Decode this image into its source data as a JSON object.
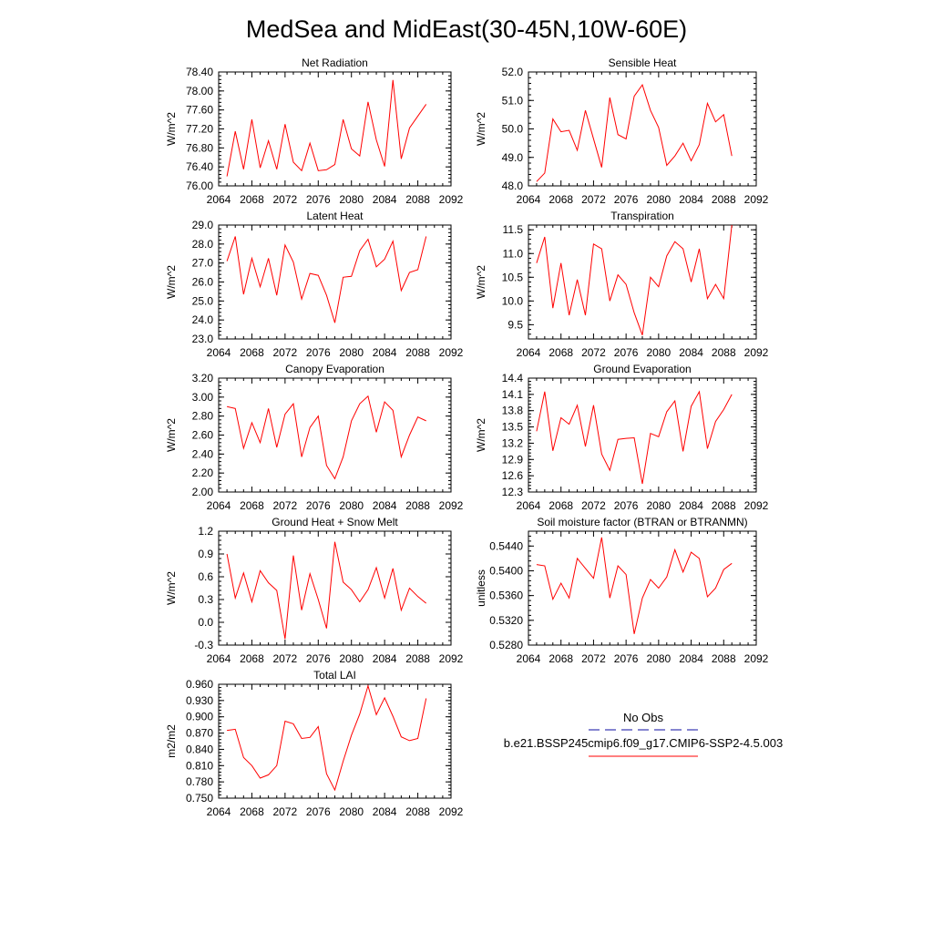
{
  "figure": {
    "title": "MedSea and MidEast(30-45N,10W-60E)"
  },
  "legend": {
    "entries": [
      {
        "label": "No Obs",
        "color": "#3c3cb4",
        "dash": true
      },
      {
        "label": "b.e21.BSSP245cmip6.f09_g17.CMIP6-SSP2-4.5.003",
        "color": "#ff0000",
        "dash": false
      }
    ]
  },
  "chart_data": [
    {
      "type": "line",
      "title": "Net Radiation",
      "ylabel": "W/m^2",
      "xlim": [
        2064,
        2092
      ],
      "ylim": [
        76.0,
        78.4
      ],
      "xticks": [
        "2064",
        "2068",
        "2072",
        "2076",
        "2080",
        "2084",
        "2088",
        "2092"
      ],
      "yticks": [
        "76.00",
        "76.40",
        "76.80",
        "77.20",
        "77.60",
        "78.00",
        "78.40"
      ],
      "series": [
        {
          "color": "#ff0000",
          "x": [
            2065,
            2066,
            2067,
            2068,
            2069,
            2070,
            2071,
            2072,
            2073,
            2074,
            2075,
            2076,
            2077,
            2078,
            2079,
            2080,
            2081,
            2082,
            2083,
            2084,
            2085,
            2086,
            2087,
            2088,
            2089
          ],
          "values": [
            76.2,
            77.15,
            76.35,
            77.4,
            76.38,
            76.95,
            76.35,
            77.3,
            76.5,
            76.32,
            76.9,
            76.32,
            76.34,
            76.45,
            77.4,
            76.78,
            76.63,
            77.77,
            76.97,
            76.41,
            78.23,
            76.57,
            77.22,
            77.47,
            77.72
          ]
        }
      ]
    },
    {
      "type": "line",
      "title": "Sensible Heat",
      "ylabel": "W/m^2",
      "xlim": [
        2064,
        2092
      ],
      "ylim": [
        48.0,
        52.0
      ],
      "xticks": [
        "2064",
        "2068",
        "2072",
        "2076",
        "2080",
        "2084",
        "2088",
        "2092"
      ],
      "yticks": [
        "48.0",
        "49.0",
        "50.0",
        "51.0",
        "52.0"
      ],
      "series": [
        {
          "color": "#ff0000",
          "x": [
            2065,
            2066,
            2067,
            2068,
            2069,
            2070,
            2071,
            2072,
            2073,
            2074,
            2075,
            2076,
            2077,
            2078,
            2079,
            2080,
            2081,
            2082,
            2083,
            2084,
            2085,
            2086,
            2087,
            2088,
            2089
          ],
          "values": [
            48.15,
            48.45,
            50.35,
            49.9,
            49.95,
            49.25,
            50.65,
            49.65,
            48.65,
            51.1,
            49.8,
            49.65,
            51.15,
            51.55,
            50.65,
            50.05,
            48.72,
            49.05,
            49.5,
            48.88,
            49.45,
            50.9,
            50.25,
            50.5,
            49.05
          ]
        }
      ]
    },
    {
      "type": "line",
      "title": "Latent Heat",
      "ylabel": "W/m^2",
      "xlim": [
        2064,
        2092
      ],
      "ylim": [
        23.0,
        29.0
      ],
      "xticks": [
        "2064",
        "2068",
        "2072",
        "2076",
        "2080",
        "2084",
        "2088",
        "2092"
      ],
      "yticks": [
        "23.0",
        "24.0",
        "25.0",
        "26.0",
        "27.0",
        "28.0",
        "29.0"
      ],
      "series": [
        {
          "color": "#ff0000",
          "x": [
            2065,
            2066,
            2067,
            2068,
            2069,
            2070,
            2071,
            2072,
            2073,
            2074,
            2075,
            2076,
            2077,
            2078,
            2079,
            2080,
            2081,
            2082,
            2083,
            2084,
            2085,
            2086,
            2087,
            2088,
            2089
          ],
          "values": [
            27.1,
            28.4,
            25.35,
            27.25,
            25.75,
            27.25,
            25.3,
            27.95,
            27.05,
            25.1,
            26.45,
            26.35,
            25.3,
            23.85,
            26.25,
            26.3,
            27.65,
            28.25,
            26.8,
            27.2,
            28.15,
            25.55,
            26.5,
            26.65,
            28.4
          ]
        }
      ]
    },
    {
      "type": "line",
      "title": "Transpiration",
      "ylabel": "W/m^2",
      "xlim": [
        2064,
        2092
      ],
      "ylim": [
        9.2,
        11.6
      ],
      "xticks": [
        "2064",
        "2068",
        "2072",
        "2076",
        "2080",
        "2084",
        "2088",
        "2092"
      ],
      "yticks": [
        "9.5",
        "10.0",
        "10.5",
        "11.0",
        "11.5"
      ],
      "series": [
        {
          "color": "#ff0000",
          "x": [
            2065,
            2066,
            2067,
            2068,
            2069,
            2070,
            2071,
            2072,
            2073,
            2074,
            2075,
            2076,
            2077,
            2078,
            2079,
            2080,
            2081,
            2082,
            2083,
            2084,
            2085,
            2086,
            2087,
            2088,
            2089
          ],
          "values": [
            10.8,
            11.35,
            9.85,
            10.8,
            9.7,
            10.45,
            9.7,
            11.2,
            11.1,
            10.0,
            10.55,
            10.35,
            9.75,
            9.28,
            10.5,
            10.3,
            10.95,
            11.25,
            11.1,
            10.4,
            11.1,
            10.05,
            10.35,
            10.05,
            11.6
          ]
        }
      ]
    },
    {
      "type": "line",
      "title": "Canopy Evaporation",
      "ylabel": "W/m^2",
      "xlim": [
        2064,
        2092
      ],
      "ylim": [
        2.0,
        3.2
      ],
      "xticks": [
        "2064",
        "2068",
        "2072",
        "2076",
        "2080",
        "2084",
        "2088",
        "2092"
      ],
      "yticks": [
        "2.00",
        "2.20",
        "2.40",
        "2.60",
        "2.80",
        "3.00",
        "3.20"
      ],
      "series": [
        {
          "color": "#ff0000",
          "x": [
            2065,
            2066,
            2067,
            2068,
            2069,
            2070,
            2071,
            2072,
            2073,
            2074,
            2075,
            2076,
            2077,
            2078,
            2079,
            2080,
            2081,
            2082,
            2083,
            2084,
            2085,
            2086,
            2087,
            2088,
            2089
          ],
          "values": [
            2.9,
            2.88,
            2.46,
            2.73,
            2.52,
            2.88,
            2.47,
            2.82,
            2.93,
            2.37,
            2.68,
            2.8,
            2.28,
            2.14,
            2.37,
            2.75,
            2.93,
            3.01,
            2.63,
            2.95,
            2.86,
            2.37,
            2.6,
            2.79,
            2.75
          ]
        }
      ]
    },
    {
      "type": "line",
      "title": "Ground Evaporation",
      "ylabel": "W/m^2",
      "xlim": [
        2064,
        2092
      ],
      "ylim": [
        12.3,
        14.4
      ],
      "xticks": [
        "2064",
        "2068",
        "2072",
        "2076",
        "2080",
        "2084",
        "2088",
        "2092"
      ],
      "yticks": [
        "12.3",
        "12.6",
        "12.9",
        "13.2",
        "13.5",
        "13.8",
        "14.1",
        "14.4"
      ],
      "series": [
        {
          "color": "#ff0000",
          "x": [
            2065,
            2066,
            2067,
            2068,
            2069,
            2070,
            2071,
            2072,
            2073,
            2074,
            2075,
            2076,
            2077,
            2078,
            2079,
            2080,
            2081,
            2082,
            2083,
            2084,
            2085,
            2086,
            2087,
            2088,
            2089
          ],
          "values": [
            13.42,
            14.15,
            13.06,
            13.67,
            13.55,
            13.9,
            13.14,
            13.9,
            13.0,
            12.7,
            13.27,
            13.29,
            13.3,
            12.45,
            13.38,
            13.32,
            13.78,
            13.98,
            13.05,
            13.88,
            14.15,
            13.1,
            13.6,
            13.82,
            14.1
          ]
        }
      ]
    },
    {
      "type": "line",
      "title": "Ground Heat + Snow Melt",
      "ylabel": "W/m^2",
      "xlim": [
        2064,
        2092
      ],
      "ylim": [
        -0.3,
        1.2
      ],
      "xticks": [
        "2064",
        "2068",
        "2072",
        "2076",
        "2080",
        "2084",
        "2088",
        "2092"
      ],
      "yticks": [
        "-0.3",
        "0.0",
        "0.3",
        "0.6",
        "0.9",
        "1.2"
      ],
      "series": [
        {
          "color": "#ff0000",
          "x": [
            2065,
            2066,
            2067,
            2068,
            2069,
            2070,
            2071,
            2072,
            2073,
            2074,
            2075,
            2076,
            2077,
            2078,
            2079,
            2080,
            2081,
            2082,
            2083,
            2084,
            2085,
            2086,
            2087,
            2088,
            2089
          ],
          "values": [
            0.9,
            0.32,
            0.65,
            0.27,
            0.68,
            0.52,
            0.42,
            -0.22,
            0.88,
            0.16,
            0.64,
            0.3,
            -0.08,
            1.06,
            0.53,
            0.43,
            0.27,
            0.43,
            0.72,
            0.32,
            0.71,
            0.16,
            0.45,
            0.34,
            0.25
          ]
        }
      ]
    },
    {
      "type": "line",
      "title": "Soil moisture factor (BTRAN or BTRANMN)",
      "ylabel": "unitless",
      "xlim": [
        2064,
        2092
      ],
      "ylim": [
        0.528,
        0.5464
      ],
      "xticks": [
        "2064",
        "2068",
        "2072",
        "2076",
        "2080",
        "2084",
        "2088",
        "2092"
      ],
      "yticks": [
        "0.5280",
        "0.5320",
        "0.5360",
        "0.5400",
        "0.5440"
      ],
      "series": [
        {
          "color": "#ff0000",
          "x": [
            2065,
            2066,
            2067,
            2068,
            2069,
            2070,
            2071,
            2072,
            2073,
            2074,
            2075,
            2076,
            2077,
            2078,
            2079,
            2080,
            2081,
            2082,
            2083,
            2084,
            2085,
            2086,
            2087,
            2088,
            2089
          ],
          "values": [
            0.541,
            0.5408,
            0.5354,
            0.538,
            0.5356,
            0.542,
            0.5404,
            0.5388,
            0.5454,
            0.5356,
            0.5408,
            0.5394,
            0.5298,
            0.5356,
            0.5386,
            0.5372,
            0.539,
            0.5434,
            0.5398,
            0.543,
            0.542,
            0.5358,
            0.5372,
            0.5402,
            0.5412
          ]
        }
      ]
    },
    {
      "type": "line",
      "title": "Total LAI",
      "ylabel": "m2/m2",
      "xlim": [
        2064,
        2092
      ],
      "ylim": [
        0.75,
        0.96
      ],
      "xticks": [
        "2064",
        "2068",
        "2072",
        "2076",
        "2080",
        "2084",
        "2088",
        "2092"
      ],
      "yticks": [
        "0.750",
        "0.780",
        "0.810",
        "0.840",
        "0.870",
        "0.900",
        "0.930",
        "0.960"
      ],
      "series": [
        {
          "color": "#ff0000",
          "x": [
            2065,
            2066,
            2067,
            2068,
            2069,
            2070,
            2071,
            2072,
            2073,
            2074,
            2075,
            2076,
            2077,
            2078,
            2079,
            2080,
            2081,
            2082,
            2083,
            2084,
            2085,
            2086,
            2087,
            2088,
            2089
          ],
          "values": [
            0.875,
            0.877,
            0.825,
            0.81,
            0.787,
            0.793,
            0.81,
            0.892,
            0.887,
            0.86,
            0.862,
            0.882,
            0.795,
            0.765,
            0.818,
            0.866,
            0.905,
            0.957,
            0.904,
            0.935,
            0.901,
            0.863,
            0.856,
            0.86,
            0.934
          ]
        }
      ]
    }
  ]
}
